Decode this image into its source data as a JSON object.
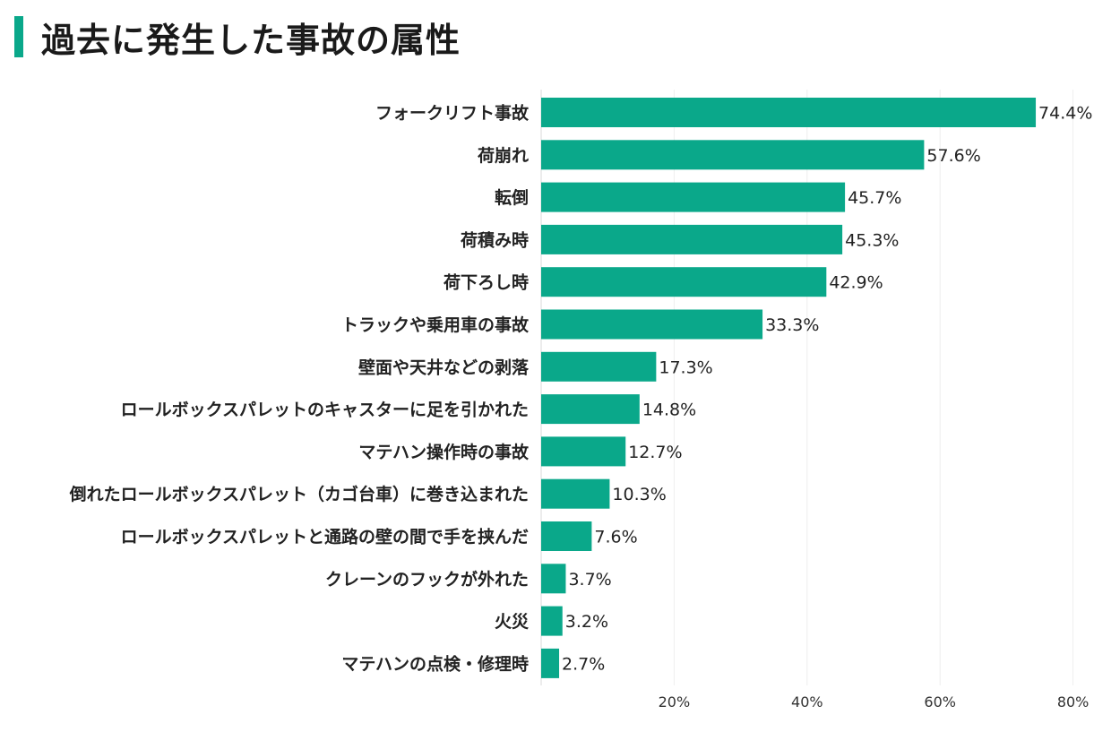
{
  "chart_data": {
    "type": "bar",
    "orientation": "horizontal",
    "title": "過去に発生した事故の属性",
    "categories": [
      "フォークリフト事故",
      "荷崩れ",
      "転倒",
      "荷積み時",
      "荷下ろし時",
      "トラックや乗用車の事故",
      "壁面や天井などの剥落",
      "ロールボックスパレットのキャスターに足を引かれた",
      "マテハン操作時の事故",
      "倒れたロールボックスパレット（カゴ台車）に巻き込まれた",
      "ロールボックスパレットと通路の壁の間で手を挟んだ",
      "クレーンのフックが外れた",
      "火災",
      "マテハンの点検・修理時"
    ],
    "values": [
      74.4,
      57.6,
      45.7,
      45.3,
      42.9,
      33.3,
      17.3,
      14.8,
      12.7,
      10.3,
      7.6,
      3.7,
      3.2,
      2.7
    ],
    "value_labels": [
      "74.4%",
      "57.6%",
      "45.7%",
      "45.3%",
      "42.9%",
      "33.3%",
      "17.3%",
      "14.8%",
      "12.7%",
      "10.3%",
      "7.6%",
      "3.7%",
      "3.2%",
      "2.7%"
    ],
    "xlim": [
      0,
      80
    ],
    "xticks": [
      20,
      40,
      60,
      80
    ],
    "xtick_labels": [
      "20%",
      "40%",
      "60%",
      "80%"
    ],
    "grid": true,
    "bar_color": "#0aa88a",
    "accent_color": "#0aa88a"
  }
}
